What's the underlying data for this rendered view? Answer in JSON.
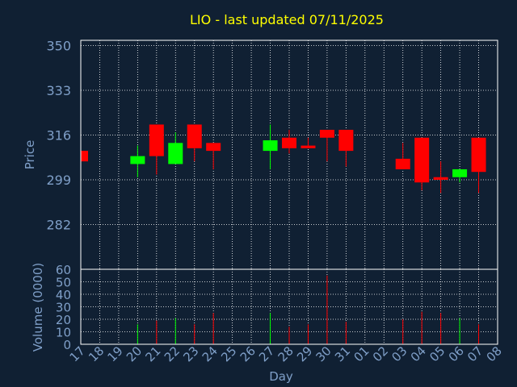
{
  "chart_data": {
    "type": "candlestick",
    "title": "LIO - last updated 07/11/2025",
    "xlabel": "Day",
    "colors": {
      "background": "#102033",
      "up": "#00ff00",
      "down": "#ff0000",
      "grid": "#ffffff",
      "text": "#7f9fc8",
      "title": "#ffff00",
      "frame": "#ffffff"
    },
    "days": [
      "17",
      "18",
      "19",
      "20",
      "21",
      "22",
      "23",
      "24",
      "25",
      "26",
      "27",
      "28",
      "29",
      "30",
      "31",
      "01",
      "02",
      "03",
      "04",
      "05",
      "06",
      "07",
      "08"
    ],
    "price_panel": {
      "ylabel": "Price",
      "ylim": [
        265,
        352
      ],
      "yticks": [
        350,
        333,
        316,
        299,
        282
      ],
      "grid": true,
      "candles": [
        {
          "day": "17",
          "open": 310,
          "close": 306,
          "high": 310,
          "low": 306
        },
        {
          "day": "20",
          "open": 305,
          "close": 308,
          "high": 312,
          "low": 300
        },
        {
          "day": "21",
          "open": 320,
          "close": 308,
          "high": 320,
          "low": 301
        },
        {
          "day": "22",
          "open": 305,
          "close": 313,
          "high": 317,
          "low": 305
        },
        {
          "day": "23",
          "open": 320,
          "close": 311,
          "high": 320,
          "low": 306
        },
        {
          "day": "24",
          "open": 313,
          "close": 310,
          "high": 313,
          "low": 303
        },
        {
          "day": "27",
          "open": 310,
          "close": 314,
          "high": 320,
          "low": 303
        },
        {
          "day": "28",
          "open": 315,
          "close": 311,
          "high": 318,
          "low": 309
        },
        {
          "day": "29",
          "open": 312,
          "close": 311,
          "high": 315,
          "low": 311
        },
        {
          "day": "30",
          "open": 318,
          "close": 315,
          "high": 318,
          "low": 306
        },
        {
          "day": "31",
          "open": 318,
          "close": 310,
          "high": 318,
          "low": 304
        },
        {
          "day": "03",
          "open": 307,
          "close": 303,
          "high": 313,
          "low": 303
        },
        {
          "day": "04",
          "open": 315,
          "close": 298,
          "high": 315,
          "low": 295
        },
        {
          "day": "05",
          "open": 300,
          "close": 299,
          "high": 306,
          "low": 294
        },
        {
          "day": "06",
          "open": 300,
          "close": 303,
          "high": 303,
          "low": 298
        },
        {
          "day": "07",
          "open": 315,
          "close": 302,
          "high": 315,
          "low": 294
        }
      ]
    },
    "volume_panel": {
      "ylabel": "Volume (0000)",
      "ylim": [
        0,
        60
      ],
      "yticks": [
        60,
        50,
        40,
        30,
        20,
        10,
        0
      ],
      "grid": true,
      "bars": [
        {
          "day": "20",
          "value": 16,
          "direction": "up"
        },
        {
          "day": "21",
          "value": 19,
          "direction": "down"
        },
        {
          "day": "22",
          "value": 21,
          "direction": "up"
        },
        {
          "day": "23",
          "value": 16,
          "direction": "down"
        },
        {
          "day": "24",
          "value": 25,
          "direction": "down"
        },
        {
          "day": "27",
          "value": 25,
          "direction": "up"
        },
        {
          "day": "28",
          "value": 14,
          "direction": "down"
        },
        {
          "day": "29",
          "value": 16,
          "direction": "down"
        },
        {
          "day": "30",
          "value": 55,
          "direction": "down"
        },
        {
          "day": "31",
          "value": 18,
          "direction": "down"
        },
        {
          "day": "03",
          "value": 20,
          "direction": "down"
        },
        {
          "day": "04",
          "value": 26,
          "direction": "down"
        },
        {
          "day": "05",
          "value": 25,
          "direction": "down"
        },
        {
          "day": "06",
          "value": 21,
          "direction": "up"
        },
        {
          "day": "07",
          "value": 16,
          "direction": "down"
        }
      ]
    }
  }
}
